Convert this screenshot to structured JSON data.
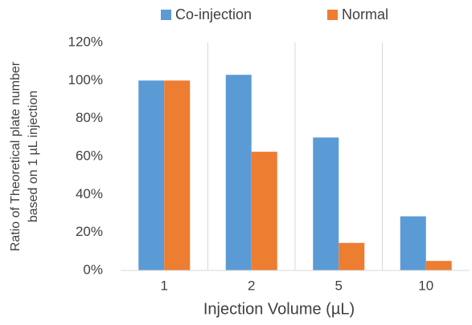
{
  "chart_data": {
    "type": "bar",
    "xlabel": "Injection Volume (µL)",
    "ylabel": [
      "Ratio of Theoretical plate number",
      "based on 1 µL injection"
    ],
    "categories": [
      "1",
      "2",
      "5",
      "10"
    ],
    "series": [
      {
        "name": "Co-injection",
        "color": "#5b9bd5",
        "values": [
          100,
          103,
          70,
          28.5
        ]
      },
      {
        "name": "Normal",
        "color": "#ed7d31",
        "values": [
          100,
          62.5,
          14.5,
          5
        ]
      }
    ],
    "ylim": [
      0,
      120
    ],
    "yticks": [
      {
        "value": 0,
        "label": "0%"
      },
      {
        "value": 20,
        "label": "20%"
      },
      {
        "value": 40,
        "label": "40%"
      },
      {
        "value": 60,
        "label": "60%"
      },
      {
        "value": 80,
        "label": "80%"
      },
      {
        "value": 100,
        "label": "100%"
      },
      {
        "value": 120,
        "label": "120%"
      }
    ],
    "legend": "top"
  }
}
